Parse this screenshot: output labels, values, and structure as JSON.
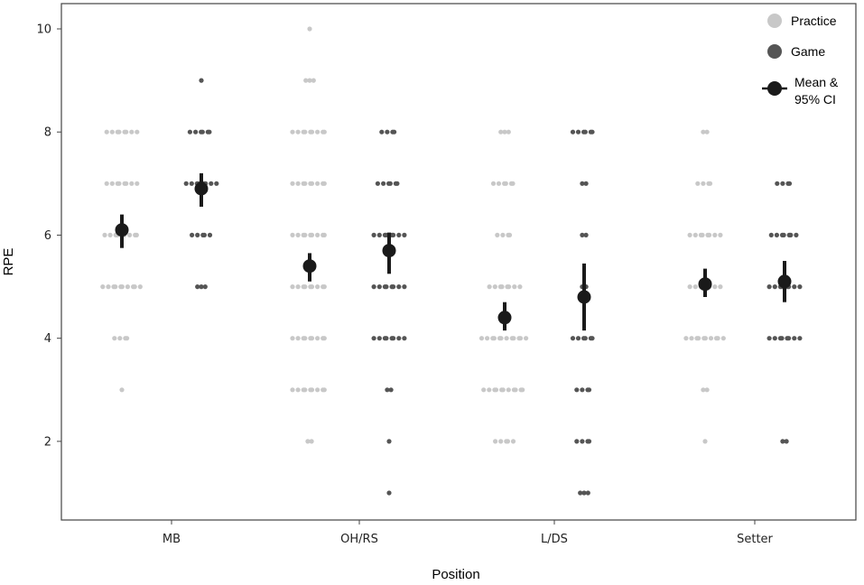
{
  "chart_data": {
    "type": "scatter",
    "title": "",
    "xlabel": "Position",
    "ylabel": "RPE",
    "categories": [
      "MB",
      "OH/RS",
      "L/DS",
      "Setter"
    ],
    "y_ticks": [
      2,
      4,
      6,
      8,
      10
    ],
    "ylim": [
      0.5,
      10.5
    ],
    "grid": false,
    "legend_position": "top-right",
    "legend": [
      {
        "label": "Practice",
        "kind": "practice"
      },
      {
        "label": "Game",
        "kind": "game"
      },
      {
        "label": "Mean & 95% CI",
        "kind": "mean"
      }
    ],
    "colors": {
      "practice": "#c8c8c8",
      "game": "#555555",
      "mean": "#1a1a1a",
      "axis": "#444444"
    },
    "series": [
      {
        "name": "Practice",
        "groups": [
          {
            "category": "MB",
            "points": [
              {
                "y": 8,
                "n": 8
              },
              {
                "y": 7,
                "n": 8
              },
              {
                "y": 6,
                "n": 9
              },
              {
                "y": 5,
                "n": 10
              },
              {
                "y": 4,
                "n": 4
              },
              {
                "y": 3,
                "n": 1
              }
            ]
          },
          {
            "category": "OH/RS",
            "points": [
              {
                "y": 10,
                "n": 1
              },
              {
                "y": 9,
                "n": 3
              },
              {
                "y": 8,
                "n": 9
              },
              {
                "y": 7,
                "n": 9
              },
              {
                "y": 6,
                "n": 9
              },
              {
                "y": 5,
                "n": 9
              },
              {
                "y": 4,
                "n": 9
              },
              {
                "y": 3,
                "n": 9
              },
              {
                "y": 2,
                "n": 2
              }
            ]
          },
          {
            "category": "L/DS",
            "points": [
              {
                "y": 8,
                "n": 3
              },
              {
                "y": 7,
                "n": 6
              },
              {
                "y": 6,
                "n": 4
              },
              {
                "y": 5,
                "n": 8
              },
              {
                "y": 4,
                "n": 12
              },
              {
                "y": 3,
                "n": 11
              },
              {
                "y": 2,
                "n": 5
              }
            ]
          },
          {
            "category": "Setter",
            "points": [
              {
                "y": 8,
                "n": 2
              },
              {
                "y": 7,
                "n": 4
              },
              {
                "y": 6,
                "n": 8
              },
              {
                "y": 5,
                "n": 8
              },
              {
                "y": 4,
                "n": 10
              },
              {
                "y": 3,
                "n": 2
              },
              {
                "y": 2,
                "n": 1
              }
            ]
          }
        ]
      },
      {
        "name": "Game",
        "groups": [
          {
            "category": "MB",
            "points": [
              {
                "y": 9,
                "n": 1
              },
              {
                "y": 8,
                "n": 6
              },
              {
                "y": 7,
                "n": 8
              },
              {
                "y": 6,
                "n": 5
              },
              {
                "y": 5,
                "n": 3
              }
            ]
          },
          {
            "category": "OH/RS",
            "points": [
              {
                "y": 8,
                "n": 4
              },
              {
                "y": 7,
                "n": 6
              },
              {
                "y": 6,
                "n": 8
              },
              {
                "y": 5,
                "n": 8
              },
              {
                "y": 4,
                "n": 8
              },
              {
                "y": 3,
                "n": 2
              },
              {
                "y": 2,
                "n": 1
              },
              {
                "y": 1,
                "n": 1
              }
            ]
          },
          {
            "category": "L/DS",
            "points": [
              {
                "y": 8,
                "n": 6
              },
              {
                "y": 7,
                "n": 2
              },
              {
                "y": 6,
                "n": 2
              },
              {
                "y": 5,
                "n": 2
              },
              {
                "y": 4,
                "n": 6
              },
              {
                "y": 3,
                "n": 4
              },
              {
                "y": 2,
                "n": 4
              },
              {
                "y": 1,
                "n": 3
              }
            ]
          },
          {
            "category": "Setter",
            "points": [
              {
                "y": 7,
                "n": 4
              },
              {
                "y": 6,
                "n": 7
              },
              {
                "y": 5,
                "n": 8
              },
              {
                "y": 4,
                "n": 8
              },
              {
                "y": 2,
                "n": 2
              }
            ]
          }
        ]
      }
    ],
    "means": [
      {
        "category": "MB",
        "session": "Practice",
        "mean": 6.1,
        "ci": [
          5.75,
          6.4
        ]
      },
      {
        "category": "MB",
        "session": "Game",
        "mean": 6.9,
        "ci": [
          6.55,
          7.2
        ]
      },
      {
        "category": "OH/RS",
        "session": "Practice",
        "mean": 5.4,
        "ci": [
          5.1,
          5.65
        ]
      },
      {
        "category": "OH/RS",
        "session": "Game",
        "mean": 5.7,
        "ci": [
          5.25,
          6.05
        ]
      },
      {
        "category": "L/DS",
        "session": "Practice",
        "mean": 4.4,
        "ci": [
          4.15,
          4.7
        ]
      },
      {
        "category": "L/DS",
        "session": "Game",
        "mean": 4.8,
        "ci": [
          4.15,
          5.45
        ]
      },
      {
        "category": "Setter",
        "session": "Practice",
        "mean": 5.05,
        "ci": [
          4.8,
          5.35
        ]
      },
      {
        "category": "Setter",
        "session": "Game",
        "mean": 5.1,
        "ci": [
          4.7,
          5.5
        ]
      }
    ]
  }
}
